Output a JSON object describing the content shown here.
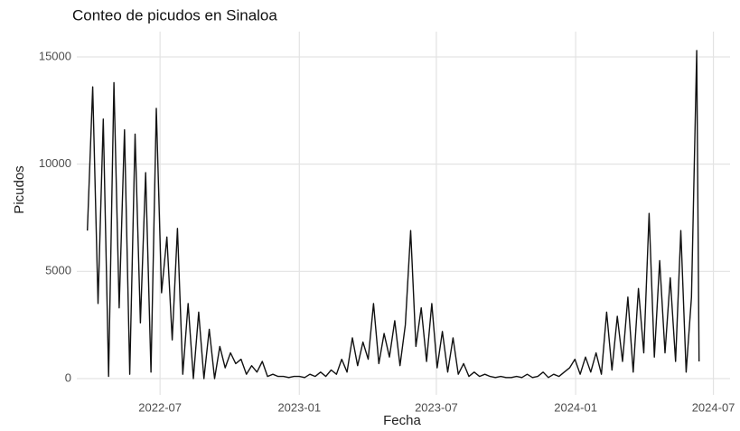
{
  "chart_data": {
    "type": "line",
    "title": "Conteo de picudos en Sinaloa",
    "xlabel": "Fecha",
    "ylabel": "Picudos",
    "x": [
      "2022-03-27",
      "2022-04-03",
      "2022-04-10",
      "2022-04-17",
      "2022-04-24",
      "2022-05-01",
      "2022-05-08",
      "2022-05-15",
      "2022-05-22",
      "2022-05-29",
      "2022-06-05",
      "2022-06-12",
      "2022-06-19",
      "2022-06-26",
      "2022-07-03",
      "2022-07-10",
      "2022-07-17",
      "2022-07-24",
      "2022-07-31",
      "2022-08-07",
      "2022-08-14",
      "2022-08-21",
      "2022-08-28",
      "2022-09-04",
      "2022-09-11",
      "2022-09-18",
      "2022-09-25",
      "2022-10-02",
      "2022-10-09",
      "2022-10-16",
      "2022-10-23",
      "2022-10-30",
      "2022-11-06",
      "2022-11-13",
      "2022-11-20",
      "2022-11-27",
      "2022-12-04",
      "2022-12-11",
      "2022-12-18",
      "2022-12-25",
      "2023-01-01",
      "2023-01-08",
      "2023-01-15",
      "2023-01-22",
      "2023-01-29",
      "2023-02-05",
      "2023-02-12",
      "2023-02-19",
      "2023-02-26",
      "2023-03-05",
      "2023-03-12",
      "2023-03-19",
      "2023-03-26",
      "2023-04-02",
      "2023-04-09",
      "2023-04-16",
      "2023-04-23",
      "2023-04-30",
      "2023-05-07",
      "2023-05-14",
      "2023-05-21",
      "2023-05-28",
      "2023-06-04",
      "2023-06-11",
      "2023-06-18",
      "2023-06-25",
      "2023-07-02",
      "2023-07-09",
      "2023-07-16",
      "2023-07-23",
      "2023-07-30",
      "2023-08-06",
      "2023-08-13",
      "2023-08-20",
      "2023-08-27",
      "2023-09-03",
      "2023-09-10",
      "2023-09-17",
      "2023-09-24",
      "2023-10-01",
      "2023-10-08",
      "2023-10-15",
      "2023-10-22",
      "2023-10-29",
      "2023-11-05",
      "2023-11-12",
      "2023-11-19",
      "2023-11-26",
      "2023-12-03",
      "2023-12-10",
      "2023-12-17",
      "2023-12-24",
      "2023-12-31",
      "2024-01-07",
      "2024-01-14",
      "2024-01-21",
      "2024-01-28",
      "2024-02-04",
      "2024-02-11",
      "2024-02-18",
      "2024-02-25",
      "2024-03-03",
      "2024-03-10",
      "2024-03-17",
      "2024-03-24",
      "2024-03-31",
      "2024-04-07",
      "2024-04-14",
      "2024-04-21",
      "2024-04-28",
      "2024-05-05",
      "2024-05-12",
      "2024-05-19",
      "2024-05-26",
      "2024-06-02",
      "2024-06-09",
      "2024-06-12"
    ],
    "series": [
      {
        "name": "Picudos",
        "color": "#111111",
        "values": [
          6900,
          13600,
          3500,
          12100,
          100,
          13800,
          3300,
          11600,
          200,
          11400,
          2600,
          9600,
          300,
          12600,
          4000,
          6600,
          1800,
          7000,
          200,
          3500,
          0,
          3100,
          0,
          2300,
          0,
          1500,
          500,
          1200,
          700,
          900,
          200,
          600,
          300,
          800,
          100,
          200,
          100,
          100,
          50,
          100,
          100,
          50,
          200,
          100,
          300,
          100,
          400,
          200,
          900,
          300,
          1900,
          600,
          1700,
          900,
          3500,
          700,
          2100,
          1000,
          2700,
          600,
          2500,
          6900,
          1500,
          3300,
          800,
          3500,
          500,
          2200,
          300,
          1900,
          200,
          700,
          100,
          300,
          100,
          200,
          100,
          50,
          100,
          50,
          50,
          100,
          50,
          200,
          50,
          100,
          300,
          50,
          200,
          100,
          300,
          500,
          900,
          200,
          1000,
          300,
          1200,
          200,
          3100,
          400,
          2900,
          800,
          3800,
          300,
          4200,
          1200,
          7700,
          1000,
          5500,
          1200,
          4700,
          800,
          6900,
          300,
          3800,
          15300,
          800
        ]
      }
    ],
    "xlim": [
      "2022-03-13",
      "2024-07-23"
    ],
    "xticks": [
      {
        "value": "2022-07-01",
        "label": "2022-07"
      },
      {
        "value": "2023-01-01",
        "label": "2023-01"
      },
      {
        "value": "2023-07-01",
        "label": "2023-07"
      },
      {
        "value": "2024-01-01",
        "label": "2024-01"
      },
      {
        "value": "2024-07-01",
        "label": "2024-07"
      }
    ],
    "ylim": [
      -760,
      16180
    ],
    "yticks": [
      0,
      5000,
      10000,
      15000
    ],
    "grid": true
  }
}
